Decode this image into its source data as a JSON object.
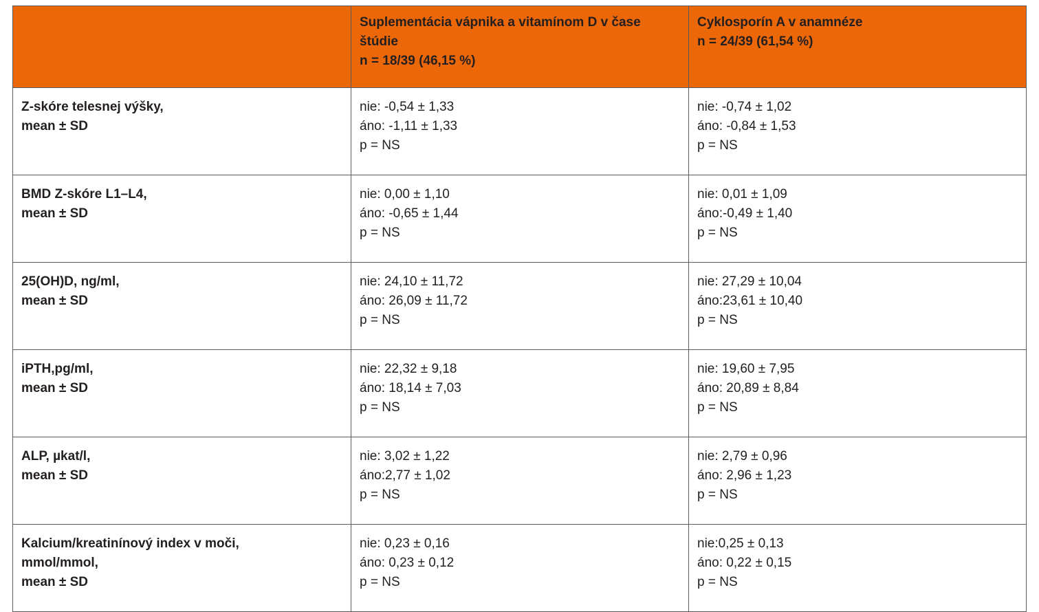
{
  "header": {
    "col1": "",
    "col2": [
      "Suplementácia vápnika a vitamínom D v čase",
      "štúdie",
      "n = 18/39 (46,15 %)"
    ],
    "col3": [
      "Cyklosporín A v anamnéze",
      "n = 24/39 (61,54 %)"
    ]
  },
  "rows": [
    {
      "param": [
        "Z-skóre telesnej výšky,",
        "mean ± SD"
      ],
      "col2": [
        "nie: -0,54 ± 1,33",
        "áno: -1,11 ± 1,33",
        "p = NS"
      ],
      "col3": [
        "nie: -0,74 ± 1,02",
        "áno: -0,84 ± 1,53",
        "p = NS"
      ]
    },
    {
      "param": [
        "BMD Z-skóre L1–L4,",
        "mean ± SD"
      ],
      "col2": [
        "nie: 0,00 ± 1,10",
        "áno: -0,65 ± 1,44",
        "p = NS"
      ],
      "col3": [
        "nie: 0,01 ± 1,09",
        "áno:-0,49 ± 1,40",
        "p = NS"
      ]
    },
    {
      "param": [
        "25(OH)D, ng/ml,",
        "mean ± SD"
      ],
      "col2": [
        "nie: 24,10 ± 11,72",
        "áno: 26,09 ± 11,72",
        "p = NS"
      ],
      "col3": [
        "nie: 27,29 ± 10,04",
        "áno:23,61 ± 10,40",
        "p = NS"
      ]
    },
    {
      "param": [
        "iPTH,pg/ml,",
        "mean ± SD"
      ],
      "col2": [
        "nie: 22,32 ± 9,18",
        "áno: 18,14 ± 7,03",
        "p = NS"
      ],
      "col3": [
        "nie: 19,60 ± 7,95",
        "áno: 20,89 ± 8,84",
        "p = NS"
      ]
    },
    {
      "param": [
        "ALP, µkat/l,",
        "mean ± SD"
      ],
      "col2": [
        "nie: 3,02 ± 1,22",
        "áno:2,77 ± 1,02",
        "p = NS"
      ],
      "col3": [
        "nie: 2,79 ± 0,96",
        "áno: 2,96 ± 1,23",
        "p = NS"
      ]
    },
    {
      "param": [
        "Kalcium/kreatinínový index v moči,",
        "mmol/mmol,",
        "mean ± SD"
      ],
      "col2": [
        "nie: 0,23 ± 0,16",
        "áno: 0,23 ± 0,12",
        "p = NS"
      ],
      "col3": [
        "nie:0,25 ± 0,13",
        "áno: 0,22 ± 0,15",
        "p = NS"
      ]
    }
  ],
  "colors": {
    "header_bg": "#ec6708",
    "border": "#5a5a5a",
    "text": "#231f20"
  }
}
